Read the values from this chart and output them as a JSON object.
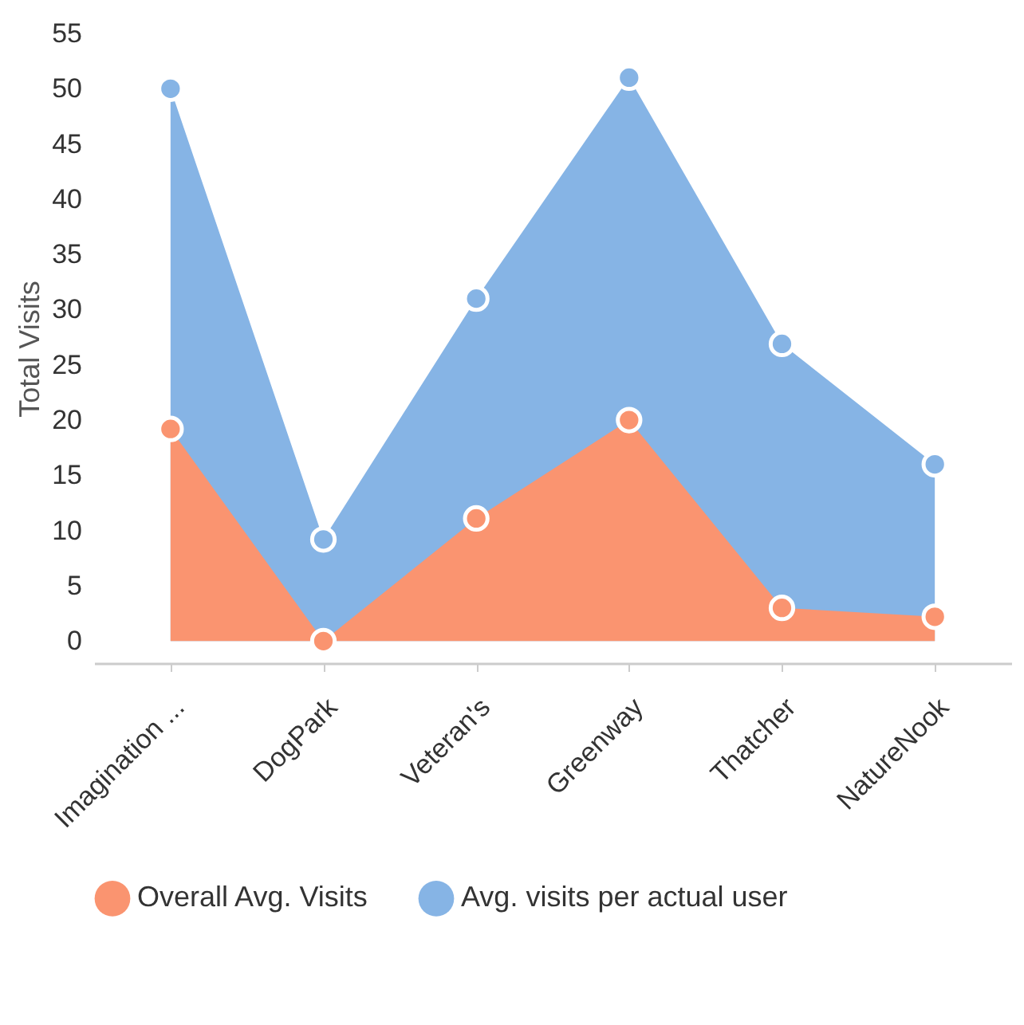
{
  "chart_data": {
    "type": "area",
    "ylabel": "Total Visits",
    "categories": [
      "Imagination ...",
      "DogPark",
      "Veteran's",
      "Greenway",
      "Thatcher",
      "NatureNook"
    ],
    "series": [
      {
        "name": "Overall Avg. Visits",
        "color": "#fa9470",
        "values": [
          19.2,
          0,
          11.1,
          20,
          3,
          2.2
        ]
      },
      {
        "name": "Avg. visits per actual user",
        "color": "#86b4e5",
        "values": [
          50,
          9.2,
          31,
          51,
          26.9,
          16
        ]
      }
    ],
    "ylim": [
      -2,
      55
    ],
    "yticks": [
      0,
      5,
      10,
      15,
      20,
      25,
      30,
      35,
      40,
      45,
      50,
      55
    ],
    "grid": false,
    "legend": "bottom",
    "marker": "circle"
  }
}
